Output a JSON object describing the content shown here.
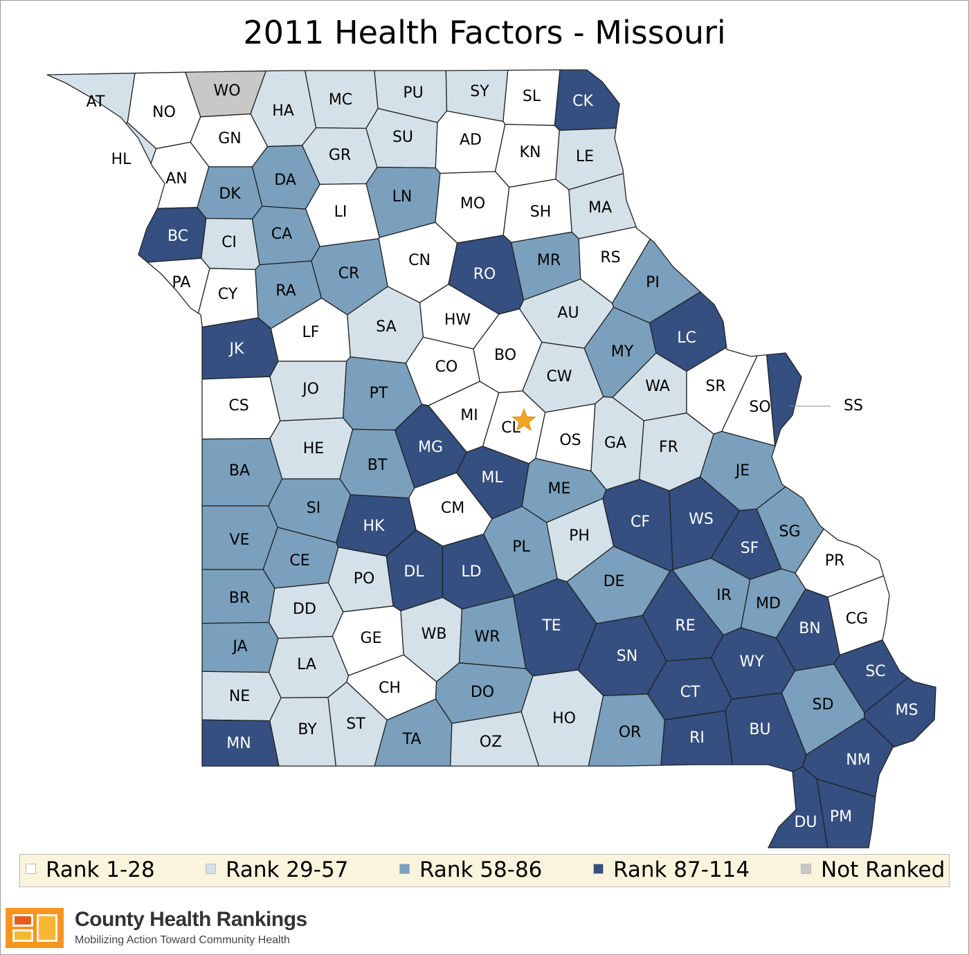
{
  "title": "2011 Health Factors - Missouri",
  "colors": {
    "rank_1_28": "#ffffff",
    "rank_29_57": "#d4e1e9",
    "rank_58_86": "#7aa0bd",
    "rank_87_114": "#344f80",
    "not_ranked": "#c8c8c8",
    "highlight_star": "#f5a623"
  },
  "legend": [
    {
      "label": "Rank 1-28",
      "class": "r1"
    },
    {
      "label": "Rank 29-57",
      "class": "r2"
    },
    {
      "label": "Rank 58-86",
      "class": "r3"
    },
    {
      "label": "Rank 87-114",
      "class": "r4"
    },
    {
      "label": "Not Ranked",
      "class": "nr"
    }
  ],
  "brand": {
    "name": "County Health Rankings",
    "tagline": "Mobilizing Action Toward Community Health"
  },
  "counties": [
    {
      "code": "AT",
      "class": "r2"
    },
    {
      "code": "NO",
      "class": "r1"
    },
    {
      "code": "WO",
      "class": "nr"
    },
    {
      "code": "HA",
      "class": "r2"
    },
    {
      "code": "MC",
      "class": "r2"
    },
    {
      "code": "PU",
      "class": "r2"
    },
    {
      "code": "SY",
      "class": "r2"
    },
    {
      "code": "SL",
      "class": "r1"
    },
    {
      "code": "CK",
      "class": "r4"
    },
    {
      "code": "HL",
      "class": "r2"
    },
    {
      "code": "GN",
      "class": "r1"
    },
    {
      "code": "GR",
      "class": "r2"
    },
    {
      "code": "SU",
      "class": "r2"
    },
    {
      "code": "AD",
      "class": "r1"
    },
    {
      "code": "KN",
      "class": "r1"
    },
    {
      "code": "LE",
      "class": "r2"
    },
    {
      "code": "AN",
      "class": "r1"
    },
    {
      "code": "DK",
      "class": "r3"
    },
    {
      "code": "DA",
      "class": "r3"
    },
    {
      "code": "LN",
      "class": "r3"
    },
    {
      "code": "LI",
      "class": "r1"
    },
    {
      "code": "MO",
      "class": "r1"
    },
    {
      "code": "SH",
      "class": "r1"
    },
    {
      "code": "MA",
      "class": "r2"
    },
    {
      "code": "BC",
      "class": "r4"
    },
    {
      "code": "CI",
      "class": "r2"
    },
    {
      "code": "CA",
      "class": "r3"
    },
    {
      "code": "CN",
      "class": "r1"
    },
    {
      "code": "RO",
      "class": "r4"
    },
    {
      "code": "MR",
      "class": "r3"
    },
    {
      "code": "RS",
      "class": "r1"
    },
    {
      "code": "PA",
      "class": "r1"
    },
    {
      "code": "CY",
      "class": "r1"
    },
    {
      "code": "RA",
      "class": "r3"
    },
    {
      "code": "CR",
      "class": "r3"
    },
    {
      "code": "PI",
      "class": "r3"
    },
    {
      "code": "AU",
      "class": "r2"
    },
    {
      "code": "HW",
      "class": "r1"
    },
    {
      "code": "JK",
      "class": "r4"
    },
    {
      "code": "LF",
      "class": "r1"
    },
    {
      "code": "SA",
      "class": "r2"
    },
    {
      "code": "BO",
      "class": "r1"
    },
    {
      "code": "MY",
      "class": "r3"
    },
    {
      "code": "LC",
      "class": "r4"
    },
    {
      "code": "CO",
      "class": "r1"
    },
    {
      "code": "CW",
      "class": "r2"
    },
    {
      "code": "JO",
      "class": "r2"
    },
    {
      "code": "PT",
      "class": "r3"
    },
    {
      "code": "WA",
      "class": "r2"
    },
    {
      "code": "SR",
      "class": "r1"
    },
    {
      "code": "CS",
      "class": "r1"
    },
    {
      "code": "SO",
      "class": "r1"
    },
    {
      "code": "SS",
      "class": "r4"
    },
    {
      "code": "MI",
      "class": "r1"
    },
    {
      "code": "MG",
      "class": "r4"
    },
    {
      "code": "CL",
      "class": "r1"
    },
    {
      "code": "OS",
      "class": "r1"
    },
    {
      "code": "GA",
      "class": "r2"
    },
    {
      "code": "FR",
      "class": "r2"
    },
    {
      "code": "HE",
      "class": "r2"
    },
    {
      "code": "BA",
      "class": "r3"
    },
    {
      "code": "BT",
      "class": "r3"
    },
    {
      "code": "ML",
      "class": "r4"
    },
    {
      "code": "ME",
      "class": "r3"
    },
    {
      "code": "JE",
      "class": "r3"
    },
    {
      "code": "SI",
      "class": "r3"
    },
    {
      "code": "CM",
      "class": "r1"
    },
    {
      "code": "CF",
      "class": "r4"
    },
    {
      "code": "WS",
      "class": "r4"
    },
    {
      "code": "HK",
      "class": "r4"
    },
    {
      "code": "VE",
      "class": "r3"
    },
    {
      "code": "SG",
      "class": "r3"
    },
    {
      "code": "PL",
      "class": "r3"
    },
    {
      "code": "PH",
      "class": "r2"
    },
    {
      "code": "SF",
      "class": "r4"
    },
    {
      "code": "PR",
      "class": "r1"
    },
    {
      "code": "CE",
      "class": "r3"
    },
    {
      "code": "DL",
      "class": "r4"
    },
    {
      "code": "LD",
      "class": "r4"
    },
    {
      "code": "PO",
      "class": "r2"
    },
    {
      "code": "DE",
      "class": "r3"
    },
    {
      "code": "IR",
      "class": "r3"
    },
    {
      "code": "BR",
      "class": "r3"
    },
    {
      "code": "MD",
      "class": "r3"
    },
    {
      "code": "DD",
      "class": "r2"
    },
    {
      "code": "TE",
      "class": "r4"
    },
    {
      "code": "RE",
      "class": "r4"
    },
    {
      "code": "BN",
      "class": "r4"
    },
    {
      "code": "CG",
      "class": "r1"
    },
    {
      "code": "GE",
      "class": "r1"
    },
    {
      "code": "WB",
      "class": "r2"
    },
    {
      "code": "WR",
      "class": "r3"
    },
    {
      "code": "JA",
      "class": "r3"
    },
    {
      "code": "SN",
      "class": "r4"
    },
    {
      "code": "LA",
      "class": "r2"
    },
    {
      "code": "WY",
      "class": "r4"
    },
    {
      "code": "SC",
      "class": "r4"
    },
    {
      "code": "CH",
      "class": "r1"
    },
    {
      "code": "CT",
      "class": "r4"
    },
    {
      "code": "DO",
      "class": "r3"
    },
    {
      "code": "NE",
      "class": "r2"
    },
    {
      "code": "SD",
      "class": "r3"
    },
    {
      "code": "MS",
      "class": "r4"
    },
    {
      "code": "HO",
      "class": "r2"
    },
    {
      "code": "BY",
      "class": "r2"
    },
    {
      "code": "ST",
      "class": "r2"
    },
    {
      "code": "TA",
      "class": "r3"
    },
    {
      "code": "OZ",
      "class": "r2"
    },
    {
      "code": "OR",
      "class": "r3"
    },
    {
      "code": "RI",
      "class": "r4"
    },
    {
      "code": "BU",
      "class": "r4"
    },
    {
      "code": "MN",
      "class": "r4"
    },
    {
      "code": "NM",
      "class": "r4"
    },
    {
      "code": "DU",
      "class": "r4"
    },
    {
      "code": "PM",
      "class": "r4"
    }
  ]
}
